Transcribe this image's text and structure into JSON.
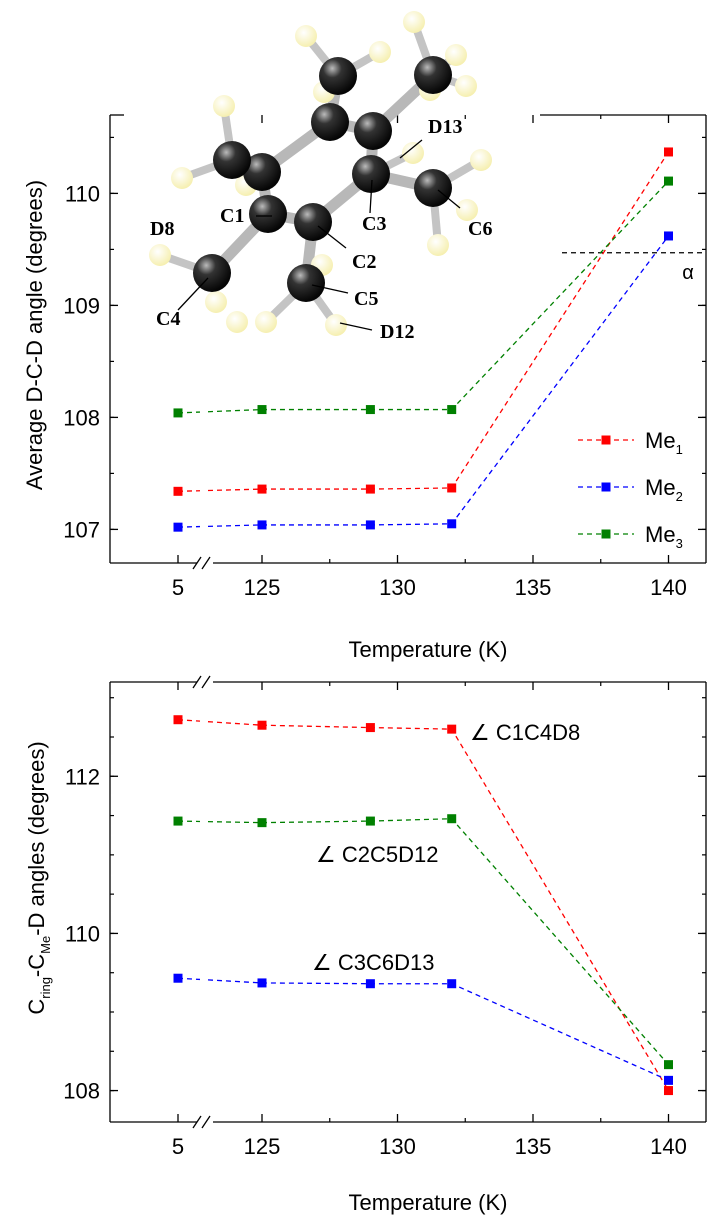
{
  "chart_data": [
    {
      "type": "line",
      "xlabel": "Temperature (K)",
      "ylabel": "Average D-C-D angle (degrees)",
      "x_tick_labels": [
        "5",
        "125",
        "130",
        "135",
        "140"
      ],
      "y_tick_labels": [
        "107",
        "108",
        "109",
        "110"
      ],
      "ylim": [
        106.7,
        110.7
      ],
      "x_axis_break": "between 5 and 125",
      "x": [
        5,
        125,
        129,
        132,
        140
      ],
      "series": [
        {
          "name": "Me",
          "sub": "1",
          "color": "#ff0000",
          "values": [
            107.34,
            107.36,
            107.36,
            107.37,
            110.37
          ]
        },
        {
          "name": "Me",
          "sub": "2",
          "color": "#0000ff",
          "values": [
            107.02,
            107.04,
            107.04,
            107.05,
            109.62
          ]
        },
        {
          "name": "Me",
          "sub": "3",
          "color": "#008000",
          "values": [
            108.04,
            108.07,
            108.07,
            108.07,
            110.11
          ]
        }
      ],
      "reference_line": {
        "label": "α",
        "y": 109.47,
        "from_x": 136
      },
      "legend_position": "right",
      "inset_molecule_labels": [
        "D13",
        "C1",
        "C3",
        "C6",
        "D8",
        "C2",
        "C5",
        "C4",
        "D12"
      ]
    },
    {
      "type": "line",
      "xlabel": "Temperature (K)",
      "ylabel": {
        "p1": "C",
        "s1": "ring",
        "p2": "-C",
        "s2": "Me",
        "p3": "-D angles (degrees)"
      },
      "x_tick_labels": [
        "5",
        "125",
        "130",
        "135",
        "140"
      ],
      "y_tick_labels": [
        "108",
        "110",
        "112"
      ],
      "ylim": [
        107.6,
        113.2
      ],
      "x_axis_break": "between 5 and 125",
      "x": [
        5,
        125,
        129,
        132,
        140
      ],
      "series": [
        {
          "name": "C1C4D8",
          "color": "#ff0000",
          "values": [
            112.72,
            112.65,
            112.62,
            112.6,
            108.0
          ]
        },
        {
          "name": "C2C5D12",
          "color": "#008000",
          "values": [
            111.43,
            111.41,
            111.43,
            111.46,
            108.33
          ]
        },
        {
          "name": "C3C6D13",
          "color": "#0000ff",
          "values": [
            109.43,
            109.37,
            109.36,
            109.36,
            108.13
          ]
        }
      ],
      "angle_symbol": "∠"
    }
  ]
}
